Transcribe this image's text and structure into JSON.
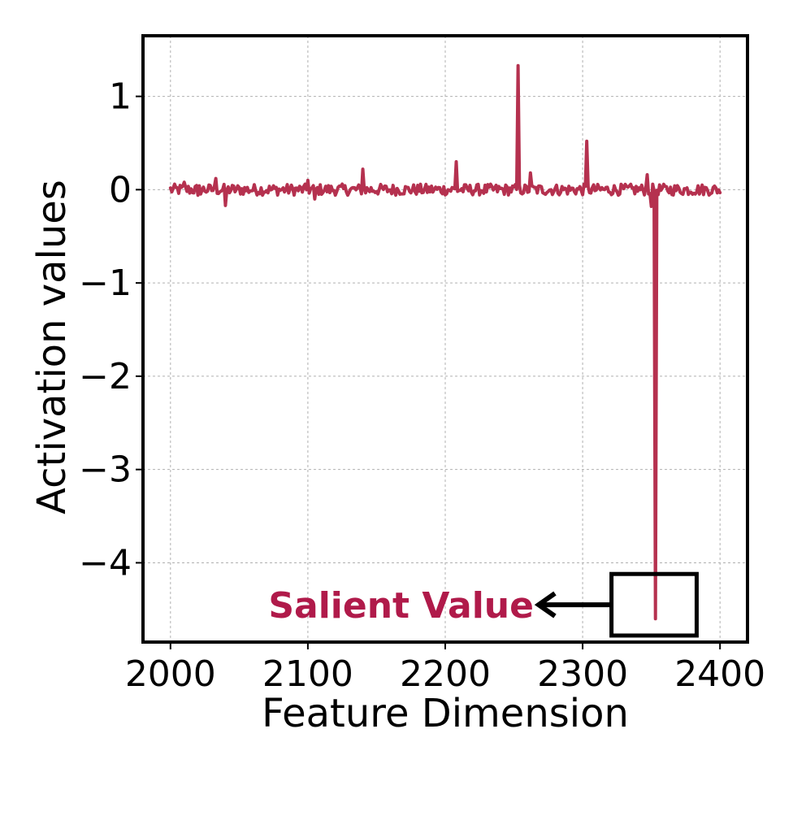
{
  "chart_data": {
    "type": "line",
    "title": "",
    "xlabel": "Feature Dimension",
    "ylabel": "Activation values",
    "xlim": [
      1980,
      2420
    ],
    "ylim": [
      -4.85,
      1.65
    ],
    "xticks": [
      2000,
      2100,
      2200,
      2300,
      2400
    ],
    "xtick_labels": [
      "2000",
      "2100",
      "2200",
      "2300",
      "2400"
    ],
    "yticks": [
      1,
      0,
      -1,
      -2,
      -3,
      -4
    ],
    "ytick_labels": [
      "1",
      "0",
      "−1",
      "−2",
      "−3",
      "−4"
    ],
    "grid": true,
    "line_color": "#b5314f",
    "series": [
      {
        "x_start": 2000,
        "x_end": 2400,
        "noise_amplitude": 0.06,
        "spikes": [
          {
            "x": 2010,
            "y": 0.08
          },
          {
            "x": 2020,
            "y": -0.06
          },
          {
            "x": 2033,
            "y": 0.12
          },
          {
            "x": 2040,
            "y": -0.17
          },
          {
            "x": 2100,
            "y": 0.1
          },
          {
            "x": 2105,
            "y": -0.1
          },
          {
            "x": 2140,
            "y": 0.22
          },
          {
            "x": 2208,
            "y": 0.3
          },
          {
            "x": 2253,
            "y": 1.33
          },
          {
            "x": 2262,
            "y": 0.18
          },
          {
            "x": 2303,
            "y": 0.52
          },
          {
            "x": 2347,
            "y": 0.16
          },
          {
            "x": 2350,
            "y": -0.18
          },
          {
            "x": 2353,
            "y": -4.6
          }
        ]
      }
    ],
    "annotations": [
      {
        "text": "Salient Value",
        "color": "#b01a4a",
        "box_x": [
          2321,
          2383
        ],
        "box_y": [
          -4.78,
          -4.12
        ],
        "arrow_from_x": 2321,
        "arrow_to_x": 2268,
        "arrow_y": -4.45
      }
    ]
  }
}
